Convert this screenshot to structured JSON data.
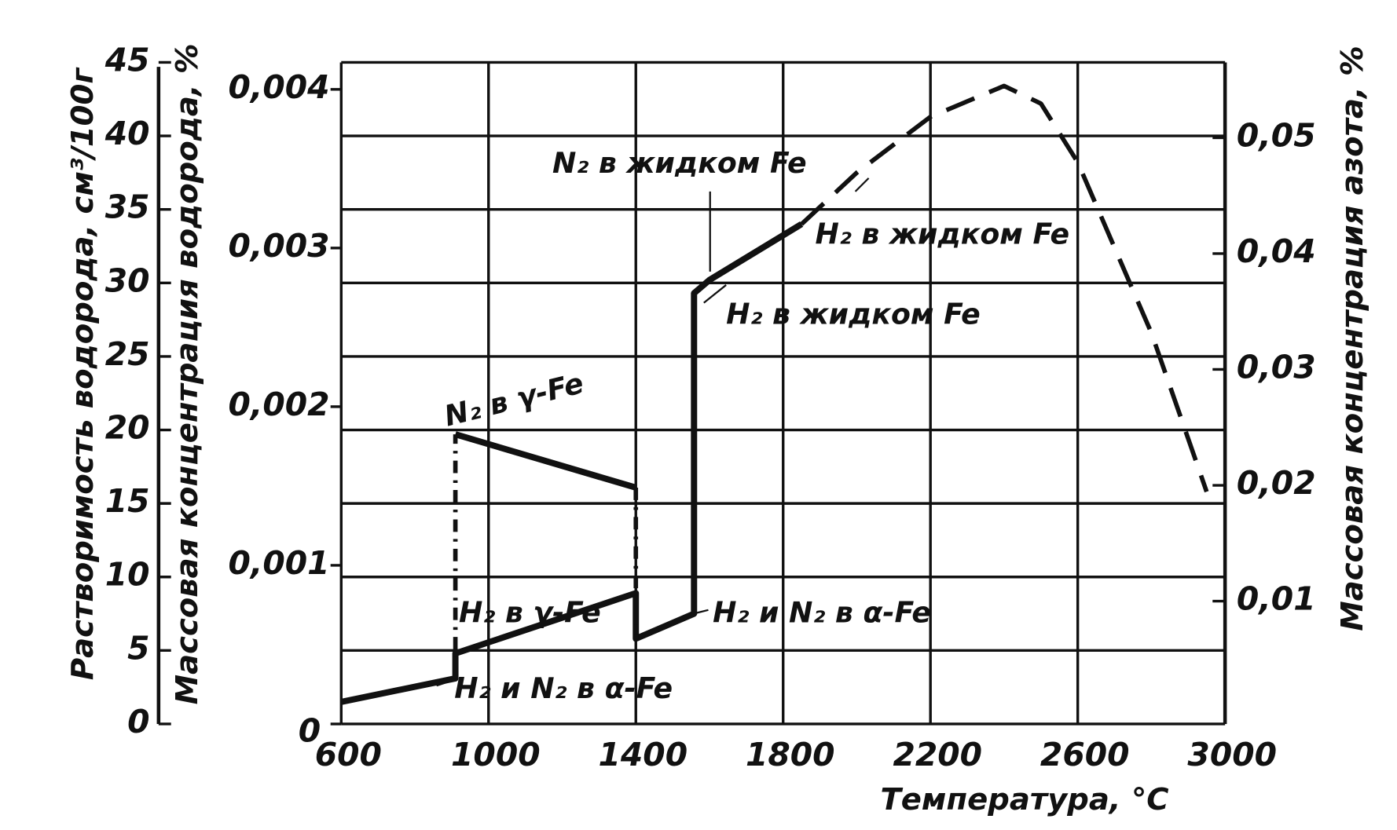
{
  "chart_data": {
    "type": "line",
    "x_label": "Температура, °С",
    "y_label": "Растворимость водорода, см³/100г",
    "y3_label": "Массовая концентрация водорода, %",
    "y2_label": "Массовая концентрация азота, %",
    "xlim": [
      600,
      3000
    ],
    "xticks": [
      600,
      1000,
      1400,
      1800,
      2200,
      2600,
      3000
    ],
    "ylim": [
      0,
      45
    ],
    "yticks": [
      0,
      5,
      10,
      15,
      20,
      25,
      30,
      35,
      40,
      45
    ],
    "y3lim": [
      0,
      0.00417
    ],
    "y3ticks": [
      0,
      {
        "value": 0.001,
        "label": "0,001"
      },
      {
        "value": 0.002,
        "label": "0,002"
      },
      {
        "value": 0.003,
        "label": "0,003"
      },
      {
        "value": 0.004,
        "label": "0,004"
      }
    ],
    "y2lim": [
      -0.0006,
      0.0565
    ],
    "y2ticks": [
      {
        "value": 0.01,
        "label": "0,01"
      },
      {
        "value": 0.02,
        "label": "0,02"
      },
      {
        "value": 0.03,
        "label": "0,03"
      },
      {
        "value": 0.04,
        "label": "0,04"
      },
      {
        "value": 0.05,
        "label": "0,05"
      }
    ],
    "grid": true,
    "color": "#111111",
    "series": [
      {
        "color": "#111111",
        "style": "solid",
        "x": [
          600,
          910,
          910,
          1400,
          1400,
          1558,
          1558,
          1600,
          1850
        ],
        "values": [
          1.5,
          3.1,
          4.8,
          8.9,
          5.8,
          7.5,
          29.3,
          30.2,
          34
        ]
      },
      {
        "color": "#111111",
        "style": "dashed",
        "x": [
          1850,
          2000,
          2200,
          2400,
          2500,
          2600,
          2800,
          2950
        ],
        "values": [
          34,
          37.5,
          41.3,
          43.4,
          42.2,
          38.2,
          26.6,
          15.8
        ]
      },
      {
        "color": "#111111",
        "style": "solid",
        "axis": "y2",
        "x": [
          910,
          1400
        ],
        "values": [
          0.0244,
          0.0198
        ]
      },
      {
        "color": "#111111",
        "style": "dash-dot",
        "axis": "y2",
        "x": [
          910,
          910
        ],
        "values": [
          0.0033,
          0.0244
        ]
      },
      {
        "color": "#111111",
        "style": "dash-dot",
        "axis": "y2",
        "x": [
          1400,
          1400
        ],
        "values": [
          0.0198,
          0.0067
        ]
      }
    ],
    "annotations": [
      "N₂ в γ-Fe",
      "H₂ в γ-Fe",
      "H₂ и N₂ в α-Fe",
      "H₂ и N₂ в α-Fe",
      "N₂ в жидком Fe",
      "H₂ в жидком Fe",
      "H₂ в жидком Fe"
    ]
  }
}
